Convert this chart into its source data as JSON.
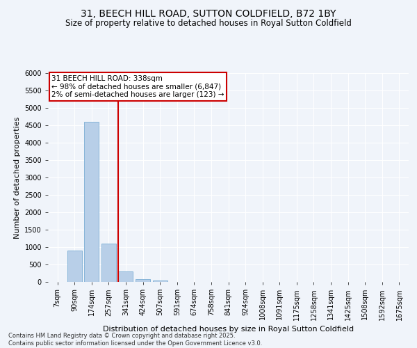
{
  "title": "31, BEECH HILL ROAD, SUTTON COLDFIELD, B72 1BY",
  "subtitle": "Size of property relative to detached houses in Royal Sutton Coldfield",
  "xlabel": "Distribution of detached houses by size in Royal Sutton Coldfield",
  "ylabel": "Number of detached properties",
  "categories": [
    "7sqm",
    "90sqm",
    "174sqm",
    "257sqm",
    "341sqm",
    "424sqm",
    "507sqm",
    "591sqm",
    "674sqm",
    "758sqm",
    "841sqm",
    "924sqm",
    "1008sqm",
    "1091sqm",
    "1175sqm",
    "1258sqm",
    "1341sqm",
    "1425sqm",
    "1508sqm",
    "1592sqm",
    "1675sqm"
  ],
  "values": [
    0,
    900,
    4600,
    1100,
    300,
    80,
    50,
    0,
    0,
    0,
    0,
    0,
    0,
    0,
    0,
    0,
    0,
    0,
    0,
    0,
    0
  ],
  "bar_color": "#b8cfe8",
  "bar_edge_color": "#7aadd4",
  "vline_x": 3.55,
  "vline_color": "#cc0000",
  "annotation_line1": "31 BEECH HILL ROAD: 338sqm",
  "annotation_line2": "← 98% of detached houses are smaller (6,847)",
  "annotation_line3": "2% of semi-detached houses are larger (123) →",
  "ylim": [
    0,
    6000
  ],
  "yticks": [
    0,
    500,
    1000,
    1500,
    2000,
    2500,
    3000,
    3500,
    4000,
    4500,
    5000,
    5500,
    6000
  ],
  "footer1": "Contains HM Land Registry data © Crown copyright and database right 2025.",
  "footer2": "Contains public sector information licensed under the Open Government Licence v3.0.",
  "bg_color": "#f0f4fa",
  "title_fontsize": 10,
  "subtitle_fontsize": 8.5,
  "ylabel_fontsize": 8,
  "xlabel_fontsize": 8,
  "tick_fontsize": 7,
  "annot_fontsize": 7.5
}
